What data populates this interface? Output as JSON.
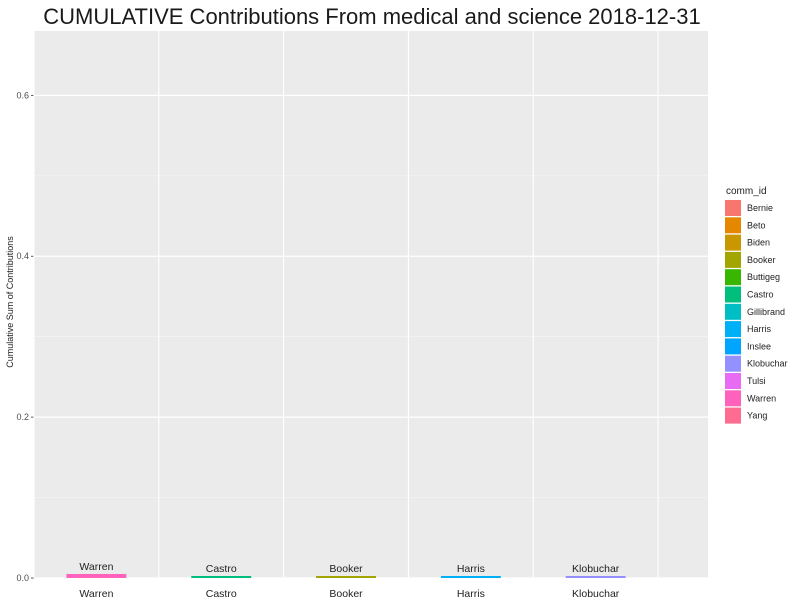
{
  "chart_data": {
    "type": "bar",
    "title": "CUMULATIVE Contributions From  medical and science  2018-12-31",
    "xlabel": "",
    "ylabel": "Cumulative Sum of Contributions",
    "ylim": [
      0,
      0.68
    ],
    "y_ticks": [
      "0.0",
      "0.2",
      "0.4",
      "0.6"
    ],
    "grid": true,
    "legend_placement": "right",
    "legend_title": "comm_id",
    "legend_entries": [
      {
        "name": "Bernie",
        "color": "#F8766D"
      },
      {
        "name": "Beto",
        "color": "#E58700"
      },
      {
        "name": "Biden",
        "color": "#C99800"
      },
      {
        "name": "Booker",
        "color": "#A3A500"
      },
      {
        "name": "Buttigeg",
        "color": "#39B600"
      },
      {
        "name": "Castro",
        "color": "#00BF7D"
      },
      {
        "name": "Gillibrand",
        "color": "#00BFC4"
      },
      {
        "name": "Harris",
        "color": "#00B0F6"
      },
      {
        "name": "Inslee",
        "color": "#00A5FF"
      },
      {
        "name": "Klobuchar",
        "color": "#9590FF"
      },
      {
        "name": "Tulsi",
        "color": "#E76BF3"
      },
      {
        "name": "Warren",
        "color": "#FF62BC"
      },
      {
        "name": "Yang",
        "color": "#FF6C91"
      }
    ],
    "categories": [
      "Warren",
      "Castro",
      "Booker",
      "Harris",
      "Klobuchar"
    ],
    "values": [
      0.005,
      0.002,
      0.001,
      0.001,
      0.0005
    ],
    "bar_colors": [
      "#FF62BC",
      "#00BF7D",
      "#A3A500",
      "#00B0F6",
      "#9590FF"
    ],
    "bar_labels": [
      "Warren",
      "Castro",
      "Booker",
      "Harris",
      "Klobuchar"
    ],
    "n_slots": 5.4
  }
}
